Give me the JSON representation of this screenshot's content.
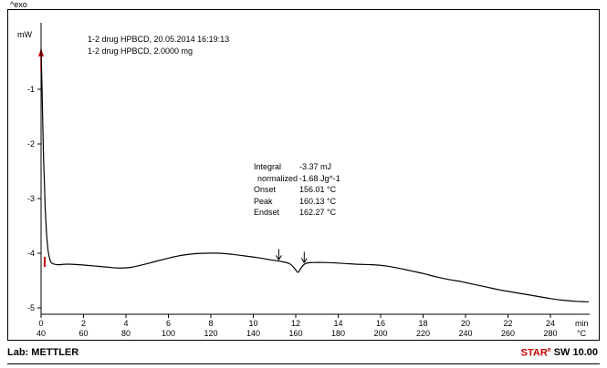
{
  "frame": {
    "exo_label": "^exo"
  },
  "header": {
    "line1": "1-2 drug HPBCD, 20.05.2014 16:19:13",
    "line2": "1-2 drug HPBCD, 2.0000 mg"
  },
  "annotation": {
    "rows": [
      {
        "label": "Integral",
        "value": "-3.37 mJ"
      },
      {
        "label": "normalized",
        "value": "-1.68 Jg^-1"
      },
      {
        "label": "Onset",
        "value": "156.01 °C"
      },
      {
        "label": "Peak",
        "value": "160.13 °C"
      },
      {
        "label": "Endset",
        "value": "162.27 °C"
      }
    ]
  },
  "footer": {
    "left": "Lab: METTLER",
    "brand": "STAR",
    "brand_sup": "e",
    "right": "SW 10.00"
  },
  "colors": {
    "accent_red": "#cc0000",
    "curve_black": "#000000"
  },
  "chart_data": {
    "type": "line",
    "title": "",
    "ylabel": "mW",
    "x_axis": {
      "unit_min": "min",
      "unit_temp": "°C",
      "ticks_min": [
        0,
        2,
        4,
        6,
        8,
        10,
        12,
        14,
        16,
        18,
        20,
        22,
        24
      ],
      "ticks_temp": [
        40,
        60,
        80,
        100,
        120,
        140,
        160,
        180,
        200,
        220,
        240,
        260,
        280
      ],
      "t_range": [
        0,
        25.85
      ],
      "heating_rate_note": "temperature row aligned as 40°C at 0 min, 10 K per min"
    },
    "y_axis": {
      "ticks": [
        -1,
        -2,
        -3,
        -4,
        -5
      ],
      "range": [
        -5.15,
        0.25
      ]
    },
    "curve": [
      [
        0.0,
        -0.25
      ],
      [
        0.05,
        -1.1
      ],
      [
        0.12,
        -2.3
      ],
      [
        0.2,
        -3.2
      ],
      [
        0.3,
        -3.85
      ],
      [
        0.42,
        -4.12
      ],
      [
        0.55,
        -4.19
      ],
      [
        0.8,
        -4.21
      ],
      [
        1.2,
        -4.2
      ],
      [
        1.8,
        -4.21
      ],
      [
        2.4,
        -4.23
      ],
      [
        3.0,
        -4.25
      ],
      [
        3.6,
        -4.27
      ],
      [
        4.2,
        -4.26
      ],
      [
        4.8,
        -4.21
      ],
      [
        5.4,
        -4.15
      ],
      [
        6.0,
        -4.09
      ],
      [
        6.6,
        -4.04
      ],
      [
        7.2,
        -4.01
      ],
      [
        7.8,
        -4.0
      ],
      [
        8.4,
        -4.0
      ],
      [
        9.0,
        -4.02
      ],
      [
        9.6,
        -4.05
      ],
      [
        10.2,
        -4.08
      ],
      [
        10.8,
        -4.12
      ],
      [
        11.3,
        -4.15
      ],
      [
        11.7,
        -4.19
      ],
      [
        11.95,
        -4.28
      ],
      [
        12.1,
        -4.35
      ],
      [
        12.25,
        -4.27
      ],
      [
        12.45,
        -4.19
      ],
      [
        12.8,
        -4.17
      ],
      [
        13.4,
        -4.17
      ],
      [
        14.0,
        -4.18
      ],
      [
        14.8,
        -4.2
      ],
      [
        15.6,
        -4.21
      ],
      [
        16.2,
        -4.23
      ],
      [
        16.8,
        -4.27
      ],
      [
        17.4,
        -4.32
      ],
      [
        18.0,
        -4.37
      ],
      [
        18.6,
        -4.43
      ],
      [
        19.2,
        -4.48
      ],
      [
        19.8,
        -4.52
      ],
      [
        20.4,
        -4.57
      ],
      [
        21.0,
        -4.62
      ],
      [
        21.6,
        -4.67
      ],
      [
        22.2,
        -4.71
      ],
      [
        22.8,
        -4.75
      ],
      [
        23.4,
        -4.79
      ],
      [
        24.0,
        -4.83
      ],
      [
        24.6,
        -4.86
      ],
      [
        25.2,
        -4.88
      ],
      [
        25.8,
        -4.89
      ]
    ],
    "start_marker": {
      "t": 0.17,
      "v": -4.15
    },
    "eval_markers": [
      {
        "t": 11.2,
        "v": -4.14
      },
      {
        "t": 12.4,
        "v": -4.19
      }
    ],
    "peak_values": {
      "integral_mJ": -3.37,
      "normalized_Jg": -1.68,
      "onset_C": 156.01,
      "peak_C": 160.13,
      "endset_C": 162.27
    }
  }
}
